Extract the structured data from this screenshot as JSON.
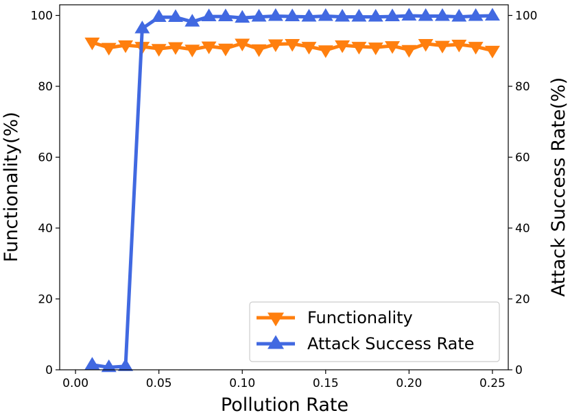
{
  "chart_data": {
    "type": "line",
    "xlabel": "Pollution Rate",
    "ylabel_left": "Functionality(%)",
    "ylabel_right": "Attack Success Rate(%)",
    "xlim": [
      -0.0095,
      0.2595
    ],
    "ylim": [
      0,
      103
    ],
    "x_ticks": [
      0.0,
      0.05,
      0.1,
      0.15,
      0.2,
      0.25
    ],
    "x_tick_labels": [
      "0.00",
      "0.05",
      "0.10",
      "0.15",
      "0.20",
      "0.25"
    ],
    "y_ticks": [
      0,
      20,
      40,
      60,
      80,
      100
    ],
    "y_tick_labels": [
      "0",
      "20",
      "40",
      "60",
      "80",
      "100"
    ],
    "legend_position": "bottom-right",
    "x": [
      0.01,
      0.02,
      0.03,
      0.04,
      0.05,
      0.06,
      0.07,
      0.08,
      0.09,
      0.1,
      0.11,
      0.12,
      0.13,
      0.14,
      0.15,
      0.16,
      0.17,
      0.18,
      0.19,
      0.2,
      0.21,
      0.22,
      0.23,
      0.24,
      0.25
    ],
    "series": [
      {
        "name": "Functionality",
        "axis": "left",
        "color": "#ff7f0e",
        "marker": "triangle-down",
        "values": [
          92.4,
          90.9,
          91.6,
          91.2,
          90.6,
          91.1,
          90.4,
          91.3,
          90.7,
          92.1,
          90.5,
          91.9,
          92.0,
          91.2,
          90.2,
          91.6,
          91.2,
          91.0,
          91.4,
          90.3,
          92.0,
          91.5,
          91.8,
          91.2,
          90.1
        ]
      },
      {
        "name": "Attack Success Rate",
        "axis": "right",
        "color": "#4169e1",
        "marker": "triangle-up",
        "values": [
          1.4,
          0.7,
          1.0,
          96.3,
          99.5,
          99.5,
          98.2,
          99.7,
          99.7,
          99.3,
          99.6,
          99.8,
          99.7,
          99.6,
          99.8,
          99.6,
          99.6,
          99.6,
          99.7,
          99.9,
          99.8,
          99.8,
          99.6,
          99.8,
          99.9
        ]
      }
    ]
  }
}
